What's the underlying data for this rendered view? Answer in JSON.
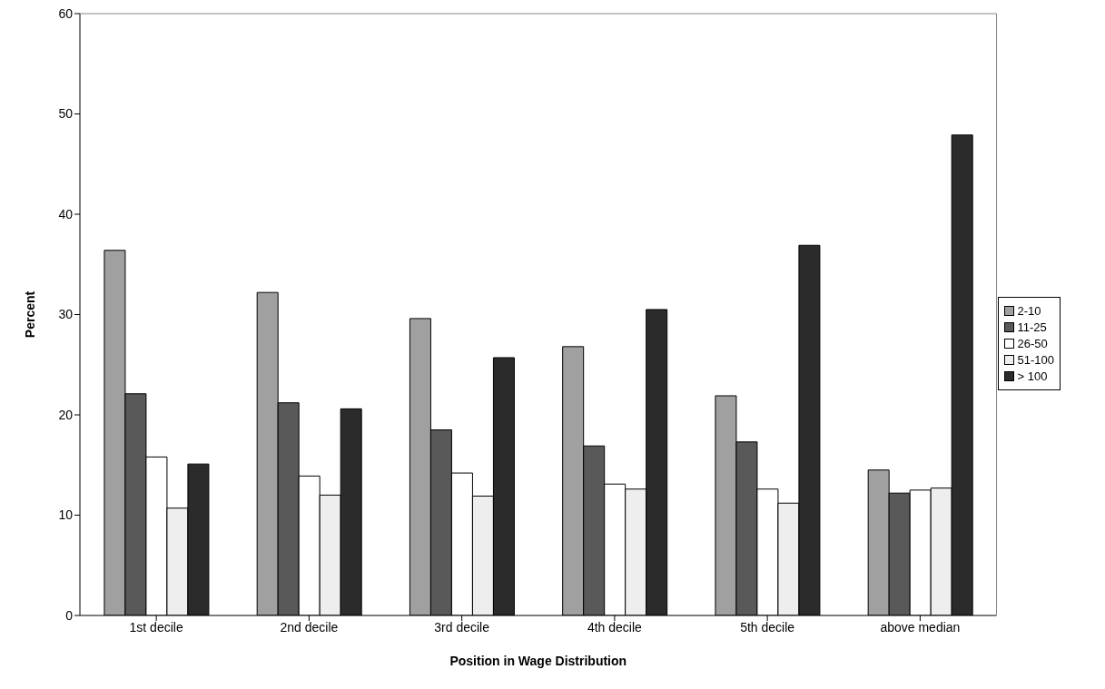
{
  "chart_data": {
    "type": "bar",
    "xlabel": "Position in Wage Distribution",
    "ylabel": "Percent",
    "categories": [
      "1st decile",
      "2nd decile",
      "3rd decile",
      "4th decile",
      "5th decile",
      "above median"
    ],
    "series": [
      {
        "name": "2-10",
        "color": "#a0a0a0",
        "values": [
          36.4,
          32.2,
          29.6,
          26.8,
          21.9,
          14.5
        ]
      },
      {
        "name": "11-25",
        "color": "#595959",
        "values": [
          22.1,
          21.2,
          18.5,
          16.9,
          17.3,
          12.2
        ]
      },
      {
        "name": "26-50",
        "color": "#ffffff",
        "values": [
          15.8,
          13.9,
          14.2,
          13.1,
          12.6,
          12.5
        ]
      },
      {
        "name": "51-100",
        "color": "#eeeeee",
        "values": [
          10.7,
          12.0,
          11.9,
          12.6,
          11.2,
          12.7
        ]
      },
      {
        "name": "> 100",
        "color": "#2b2b2b",
        "values": [
          15.1,
          20.6,
          25.7,
          30.5,
          36.9,
          47.9
        ]
      }
    ],
    "ylim": [
      0,
      60
    ],
    "yticks": [
      0,
      10,
      20,
      30,
      40,
      50,
      60
    ],
    "grid": false,
    "legend": "right"
  }
}
